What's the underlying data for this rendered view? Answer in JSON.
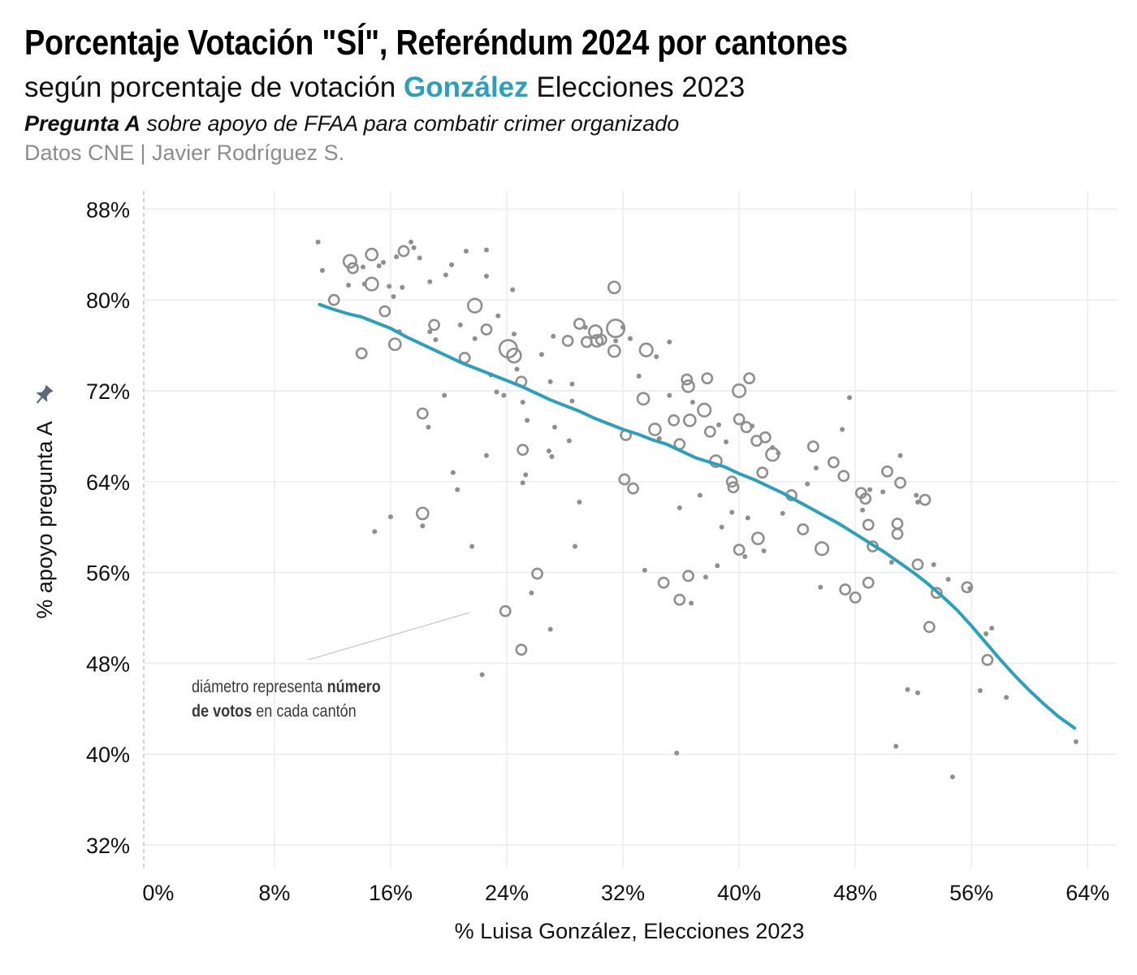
{
  "header": {
    "title": "Porcentaje Votación \"SÍ\", Referéndum 2024 por cantones",
    "subtitle_before": "según porcentaje de votación ",
    "subtitle_highlight": "González",
    "subtitle_after": " Elecciones 2023",
    "question_bold": "Pregunta A",
    "question_rest": " sobre apoyo de FFAA para combatir crimer organizado",
    "source": "Datos CNE | Javier Rodríguez S."
  },
  "colors": {
    "accent": "#2aa0bd",
    "points": "#8f8f8f",
    "grid": "#ececec"
  },
  "annotation": {
    "line1_normal": "diámetro representa ",
    "line1_bold": "número",
    "line2_bold": "de votos",
    "line2_normal": " en cada cantón"
  },
  "chart_data": {
    "type": "scatter",
    "title": "Porcentaje Votación \"SÍ\", Referéndum 2024 por cantones",
    "xlabel": "% Luisa González, Elecciones 2023",
    "ylabel": "% apoyo pregunta A",
    "ylabel_icon": "pin-icon",
    "xlim": [
      -1,
      66
    ],
    "ylim": [
      30,
      89.6
    ],
    "x_ticks": [
      0,
      8,
      16,
      24,
      32,
      40,
      48,
      56,
      64
    ],
    "x_tick_labels": [
      "0%",
      "8%",
      "16%",
      "24%",
      "32%",
      "40%",
      "48%",
      "56%",
      "64%"
    ],
    "y_ticks": [
      32,
      40,
      48,
      56,
      64,
      72,
      80,
      88
    ],
    "y_tick_labels": [
      "32%",
      "40%",
      "48%",
      "56%",
      "64%",
      "72%",
      "80%",
      "88%"
    ],
    "grid": true,
    "size_meaning": "número de votos",
    "points": [
      {
        "x": 11.0,
        "y": 85.1,
        "s": 1
      },
      {
        "x": 11.3,
        "y": 82.6,
        "s": 1
      },
      {
        "x": 12.1,
        "y": 80.0,
        "s": 2
      },
      {
        "x": 13.2,
        "y": 83.4,
        "s": 4
      },
      {
        "x": 13.4,
        "y": 82.8,
        "s": 2
      },
      {
        "x": 13.1,
        "y": 81.3,
        "s": 1
      },
      {
        "x": 14.1,
        "y": 82.9,
        "s": 1
      },
      {
        "x": 14.0,
        "y": 75.3,
        "s": 2
      },
      {
        "x": 14.2,
        "y": 81.4,
        "s": 1
      },
      {
        "x": 14.7,
        "y": 84.0,
        "s": 3
      },
      {
        "x": 14.7,
        "y": 81.4,
        "s": 4
      },
      {
        "x": 15.2,
        "y": 83.0,
        "s": 1
      },
      {
        "x": 15.5,
        "y": 83.3,
        "s": 1
      },
      {
        "x": 15.6,
        "y": 79.0,
        "s": 2
      },
      {
        "x": 15.9,
        "y": 81.2,
        "s": 1
      },
      {
        "x": 16.2,
        "y": 80.3,
        "s": 1
      },
      {
        "x": 16.6,
        "y": 77.2,
        "s": 1
      },
      {
        "x": 16.4,
        "y": 83.8,
        "s": 1
      },
      {
        "x": 16.9,
        "y": 84.3,
        "s": 2
      },
      {
        "x": 16.8,
        "y": 81.1,
        "s": 1
      },
      {
        "x": 17.4,
        "y": 85.1,
        "s": 1
      },
      {
        "x": 17.6,
        "y": 84.6,
        "s": 1
      },
      {
        "x": 18.0,
        "y": 83.7,
        "s": 1
      },
      {
        "x": 16.3,
        "y": 76.1,
        "s": 3
      },
      {
        "x": 18.7,
        "y": 81.6,
        "s": 1
      },
      {
        "x": 18.7,
        "y": 77.2,
        "s": 1
      },
      {
        "x": 19.0,
        "y": 77.8,
        "s": 2
      },
      {
        "x": 19.1,
        "y": 76.5,
        "s": 1
      },
      {
        "x": 19.8,
        "y": 82.2,
        "s": 1
      },
      {
        "x": 20.2,
        "y": 83.1,
        "s": 1
      },
      {
        "x": 21.2,
        "y": 84.3,
        "s": 1
      },
      {
        "x": 20.8,
        "y": 77.8,
        "s": 1
      },
      {
        "x": 21.1,
        "y": 74.9,
        "s": 2
      },
      {
        "x": 21.8,
        "y": 79.5,
        "s": 5
      },
      {
        "x": 22.6,
        "y": 77.4,
        "s": 2
      },
      {
        "x": 22.6,
        "y": 84.4,
        "s": 1
      },
      {
        "x": 22.6,
        "y": 82.1,
        "s": 1
      },
      {
        "x": 23.4,
        "y": 78.6,
        "s": 1
      },
      {
        "x": 24.1,
        "y": 75.7,
        "s": 10
      },
      {
        "x": 24.5,
        "y": 75.1,
        "s": 5
      },
      {
        "x": 24.4,
        "y": 80.9,
        "s": 1
      },
      {
        "x": 24.5,
        "y": 77.0,
        "s": 1
      },
      {
        "x": 24.7,
        "y": 73.9,
        "s": 1
      },
      {
        "x": 25.0,
        "y": 72.8,
        "s": 2
      },
      {
        "x": 25.1,
        "y": 71.0,
        "s": 1
      },
      {
        "x": 25.4,
        "y": 69.4,
        "s": 1
      },
      {
        "x": 26.4,
        "y": 75.2,
        "s": 1
      },
      {
        "x": 27.0,
        "y": 72.8,
        "s": 1
      },
      {
        "x": 27.2,
        "y": 76.8,
        "s": 1
      },
      {
        "x": 27.3,
        "y": 68.8,
        "s": 1
      },
      {
        "x": 28.5,
        "y": 72.6,
        "s": 1
      },
      {
        "x": 28.5,
        "y": 71.1,
        "s": 1
      },
      {
        "x": 28.2,
        "y": 76.4,
        "s": 2
      },
      {
        "x": 29.0,
        "y": 77.9,
        "s": 2
      },
      {
        "x": 29.4,
        "y": 77.6,
        "s": 1
      },
      {
        "x": 29.5,
        "y": 76.3,
        "s": 2
      },
      {
        "x": 30.1,
        "y": 77.2,
        "s": 4
      },
      {
        "x": 30.2,
        "y": 76.4,
        "s": 3
      },
      {
        "x": 30.5,
        "y": 76.5,
        "s": 2
      },
      {
        "x": 31.5,
        "y": 77.5,
        "s": 10
      },
      {
        "x": 31.4,
        "y": 81.1,
        "s": 3
      },
      {
        "x": 31.4,
        "y": 75.5,
        "s": 3
      },
      {
        "x": 31.5,
        "y": 76.4,
        "s": 1
      },
      {
        "x": 32.0,
        "y": 77.6,
        "s": 1
      },
      {
        "x": 32.5,
        "y": 76.6,
        "s": 1
      },
      {
        "x": 33.6,
        "y": 75.6,
        "s": 4
      },
      {
        "x": 34.3,
        "y": 75.0,
        "s": 1
      },
      {
        "x": 33.1,
        "y": 73.3,
        "s": 1
      },
      {
        "x": 33.4,
        "y": 71.3,
        "s": 3
      },
      {
        "x": 34.2,
        "y": 68.6,
        "s": 3
      },
      {
        "x": 34.5,
        "y": 67.8,
        "s": 1
      },
      {
        "x": 35.2,
        "y": 71.6,
        "s": 1
      },
      {
        "x": 35.2,
        "y": 76.3,
        "s": 1
      },
      {
        "x": 35.5,
        "y": 69.4,
        "s": 2
      },
      {
        "x": 35.9,
        "y": 67.3,
        "s": 2
      },
      {
        "x": 36.4,
        "y": 73.0,
        "s": 2
      },
      {
        "x": 36.5,
        "y": 72.4,
        "s": 3
      },
      {
        "x": 36.6,
        "y": 69.4,
        "s": 3
      },
      {
        "x": 36.8,
        "y": 71.0,
        "s": 1
      },
      {
        "x": 37.6,
        "y": 70.3,
        "s": 4
      },
      {
        "x": 37.8,
        "y": 73.1,
        "s": 2
      },
      {
        "x": 38.0,
        "y": 68.4,
        "s": 2
      },
      {
        "x": 38.4,
        "y": 65.8,
        "s": 3
      },
      {
        "x": 38.6,
        "y": 69.0,
        "s": 1
      },
      {
        "x": 39.1,
        "y": 67.5,
        "s": 1
      },
      {
        "x": 39.5,
        "y": 64.0,
        "s": 2
      },
      {
        "x": 39.6,
        "y": 63.5,
        "s": 2
      },
      {
        "x": 40.0,
        "y": 72.0,
        "s": 4
      },
      {
        "x": 40.0,
        "y": 69.5,
        "s": 2
      },
      {
        "x": 40.5,
        "y": 68.8,
        "s": 2
      },
      {
        "x": 40.7,
        "y": 73.1,
        "s": 2
      },
      {
        "x": 40.9,
        "y": 68.9,
        "s": 1
      },
      {
        "x": 41.2,
        "y": 67.6,
        "s": 2
      },
      {
        "x": 41.6,
        "y": 64.8,
        "s": 2
      },
      {
        "x": 41.8,
        "y": 67.9,
        "s": 2
      },
      {
        "x": 42.3,
        "y": 66.4,
        "s": 4
      },
      {
        "x": 42.7,
        "y": 66.5,
        "s": 1
      },
      {
        "x": 43.0,
        "y": 61.2,
        "s": 1
      },
      {
        "x": 43.6,
        "y": 62.8,
        "s": 2
      },
      {
        "x": 44.4,
        "y": 59.8,
        "s": 2
      },
      {
        "x": 44.7,
        "y": 63.8,
        "s": 1
      },
      {
        "x": 45.1,
        "y": 67.1,
        "s": 2
      },
      {
        "x": 45.3,
        "y": 65.2,
        "s": 1
      },
      {
        "x": 45.7,
        "y": 58.1,
        "s": 4
      },
      {
        "x": 45.6,
        "y": 54.7,
        "s": 1
      },
      {
        "x": 46.5,
        "y": 65.7,
        "s": 2
      },
      {
        "x": 47.1,
        "y": 68.6,
        "s": 1
      },
      {
        "x": 47.2,
        "y": 64.5,
        "s": 2
      },
      {
        "x": 47.3,
        "y": 54.5,
        "s": 2
      },
      {
        "x": 47.6,
        "y": 71.4,
        "s": 1
      },
      {
        "x": 48.0,
        "y": 53.8,
        "s": 2
      },
      {
        "x": 48.4,
        "y": 63.0,
        "s": 2
      },
      {
        "x": 48.7,
        "y": 62.5,
        "s": 2
      },
      {
        "x": 48.5,
        "y": 61.5,
        "s": 1
      },
      {
        "x": 48.9,
        "y": 60.2,
        "s": 2
      },
      {
        "x": 48.9,
        "y": 55.1,
        "s": 2
      },
      {
        "x": 49.2,
        "y": 58.3,
        "s": 2
      },
      {
        "x": 49.0,
        "y": 63.3,
        "s": 1
      },
      {
        "x": 49.9,
        "y": 63.1,
        "s": 1
      },
      {
        "x": 50.2,
        "y": 64.9,
        "s": 2
      },
      {
        "x": 50.5,
        "y": 56.9,
        "s": 1
      },
      {
        "x": 50.9,
        "y": 60.3,
        "s": 2
      },
      {
        "x": 50.9,
        "y": 59.4,
        "s": 2
      },
      {
        "x": 51.1,
        "y": 66.3,
        "s": 1
      },
      {
        "x": 51.1,
        "y": 63.9,
        "s": 2
      },
      {
        "x": 51.6,
        "y": 45.7,
        "s": 1
      },
      {
        "x": 52.2,
        "y": 62.8,
        "s": 1
      },
      {
        "x": 52.3,
        "y": 62.2,
        "s": 1
      },
      {
        "x": 52.3,
        "y": 56.7,
        "s": 2
      },
      {
        "x": 52.3,
        "y": 45.4,
        "s": 1
      },
      {
        "x": 52.8,
        "y": 62.4,
        "s": 2
      },
      {
        "x": 53.1,
        "y": 51.2,
        "s": 2
      },
      {
        "x": 53.4,
        "y": 56.7,
        "s": 1
      },
      {
        "x": 53.6,
        "y": 54.2,
        "s": 2
      },
      {
        "x": 54.4,
        "y": 55.4,
        "s": 1
      },
      {
        "x": 54.7,
        "y": 38.0,
        "s": 1
      },
      {
        "x": 55.7,
        "y": 54.7,
        "s": 2
      },
      {
        "x": 55.9,
        "y": 54.6,
        "s": 1
      },
      {
        "x": 56.6,
        "y": 45.6,
        "s": 1
      },
      {
        "x": 57.0,
        "y": 50.6,
        "s": 1
      },
      {
        "x": 57.1,
        "y": 48.3,
        "s": 2
      },
      {
        "x": 57.4,
        "y": 51.1,
        "s": 1
      },
      {
        "x": 58.4,
        "y": 45.0,
        "s": 1
      },
      {
        "x": 63.2,
        "y": 41.1,
        "s": 1
      },
      {
        "x": 50.8,
        "y": 40.7,
        "s": 1
      },
      {
        "x": 35.7,
        "y": 40.1,
        "s": 1
      },
      {
        "x": 35.9,
        "y": 53.6,
        "s": 2
      },
      {
        "x": 36.5,
        "y": 55.7,
        "s": 2
      },
      {
        "x": 36.7,
        "y": 53.3,
        "s": 1
      },
      {
        "x": 35.9,
        "y": 61.7,
        "s": 1
      },
      {
        "x": 37.3,
        "y": 62.8,
        "s": 1
      },
      {
        "x": 37.7,
        "y": 55.6,
        "s": 1
      },
      {
        "x": 38.5,
        "y": 56.6,
        "s": 1
      },
      {
        "x": 38.8,
        "y": 60.0,
        "s": 1
      },
      {
        "x": 39.5,
        "y": 61.3,
        "s": 1
      },
      {
        "x": 40.0,
        "y": 58.0,
        "s": 2
      },
      {
        "x": 40.4,
        "y": 57.4,
        "s": 1
      },
      {
        "x": 40.6,
        "y": 60.8,
        "s": 1
      },
      {
        "x": 41.3,
        "y": 59.0,
        "s": 3
      },
      {
        "x": 41.7,
        "y": 57.9,
        "s": 1
      },
      {
        "x": 42.3,
        "y": 67.0,
        "s": 1
      },
      {
        "x": 32.1,
        "y": 64.2,
        "s": 2
      },
      {
        "x": 32.7,
        "y": 63.4,
        "s": 2
      },
      {
        "x": 33.5,
        "y": 56.2,
        "s": 1
      },
      {
        "x": 34.8,
        "y": 55.1,
        "s": 2
      },
      {
        "x": 32.2,
        "y": 68.1,
        "s": 2
      },
      {
        "x": 29.0,
        "y": 62.2,
        "s": 1
      },
      {
        "x": 28.7,
        "y": 58.3,
        "s": 1
      },
      {
        "x": 28.3,
        "y": 67.6,
        "s": 1
      },
      {
        "x": 26.9,
        "y": 66.7,
        "s": 1
      },
      {
        "x": 27.1,
        "y": 66.2,
        "s": 1
      },
      {
        "x": 27.0,
        "y": 51.0,
        "s": 1
      },
      {
        "x": 26.1,
        "y": 55.9,
        "s": 2
      },
      {
        "x": 25.7,
        "y": 54.2,
        "s": 1
      },
      {
        "x": 25.1,
        "y": 66.8,
        "s": 2
      },
      {
        "x": 25.3,
        "y": 64.6,
        "s": 1
      },
      {
        "x": 25.1,
        "y": 63.9,
        "s": 1
      },
      {
        "x": 25.0,
        "y": 49.2,
        "s": 2
      },
      {
        "x": 23.9,
        "y": 52.6,
        "s": 2
      },
      {
        "x": 22.3,
        "y": 47.0,
        "s": 1
      },
      {
        "x": 22.6,
        "y": 66.3,
        "s": 1
      },
      {
        "x": 21.6,
        "y": 58.3,
        "s": 1
      },
      {
        "x": 20.6,
        "y": 63.3,
        "s": 1
      },
      {
        "x": 20.3,
        "y": 64.8,
        "s": 1
      },
      {
        "x": 19.7,
        "y": 71.6,
        "s": 1
      },
      {
        "x": 18.6,
        "y": 68.8,
        "s": 1
      },
      {
        "x": 18.2,
        "y": 70.0,
        "s": 2
      },
      {
        "x": 18.2,
        "y": 61.2,
        "s": 3
      },
      {
        "x": 18.2,
        "y": 60.1,
        "s": 1
      },
      {
        "x": 16.0,
        "y": 60.9,
        "s": 1
      },
      {
        "x": 14.9,
        "y": 59.6,
        "s": 1
      },
      {
        "x": 23.3,
        "y": 71.9,
        "s": 1
      },
      {
        "x": 23.8,
        "y": 71.6,
        "s": 1
      },
      {
        "x": 22.9,
        "y": 73.4,
        "s": 1
      },
      {
        "x": 21.8,
        "y": 76.6,
        "s": 1
      }
    ],
    "trend_line": {
      "x": [
        11.1,
        12,
        13,
        14,
        15,
        16,
        17,
        18,
        19,
        20,
        21,
        22,
        23,
        24,
        25,
        26,
        27,
        28,
        29,
        30,
        31,
        32,
        33,
        34,
        35,
        36,
        37,
        38,
        39,
        40,
        41,
        42,
        43,
        44,
        45,
        46,
        47,
        48,
        49,
        50,
        51,
        52,
        53,
        54,
        55,
        56,
        57,
        58,
        59,
        60,
        61,
        62,
        63.1
      ],
      "y": [
        79.6,
        79.2,
        78.8,
        78.5,
        78.0,
        77.5,
        76.8,
        76.2,
        75.6,
        75.0,
        74.4,
        73.9,
        73.4,
        72.9,
        72.4,
        71.8,
        71.2,
        70.7,
        70.2,
        69.6,
        69.1,
        68.6,
        68.2,
        67.7,
        67.3,
        66.7,
        66.1,
        65.7,
        65.3,
        64.7,
        64.2,
        63.6,
        63.0,
        62.3,
        61.6,
        60.9,
        60.2,
        59.4,
        58.6,
        57.8,
        56.9,
        56.0,
        55.0,
        53.9,
        52.7,
        51.3,
        49.8,
        48.3,
        46.9,
        45.6,
        44.4,
        43.3,
        42.3
      ]
    }
  }
}
